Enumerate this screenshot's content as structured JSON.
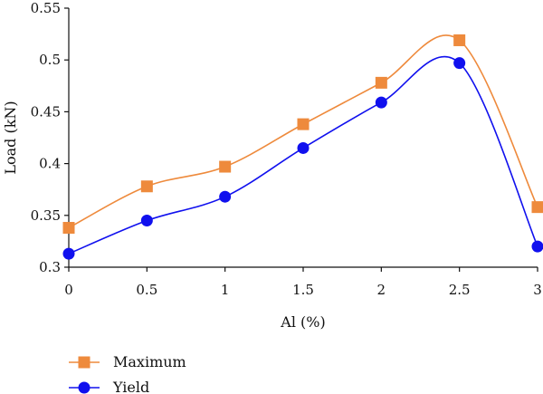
{
  "chart_data": {
    "type": "line",
    "title": "",
    "xlabel": "Al (%)",
    "ylabel": "Load (kN)",
    "xlim": [
      0,
      3
    ],
    "ylim": [
      0.3,
      0.55
    ],
    "x_ticks": [
      0,
      0.5,
      1,
      1.5,
      2,
      2.5,
      3
    ],
    "x_tick_labels": [
      "0",
      "0.5",
      "1",
      "1.5",
      "2",
      "2.5",
      "3"
    ],
    "y_ticks": [
      0.3,
      0.35,
      0.4,
      0.45,
      0.5,
      0.55
    ],
    "y_tick_labels": [
      "0.3",
      "0.35",
      "0.4",
      "0.45",
      "0.5",
      "0.55"
    ],
    "grid": false,
    "legend_position": "bottom-left",
    "series": [
      {
        "name": "Maximum",
        "color": "#ee8a3c",
        "marker": "square",
        "x": [
          0,
          0.5,
          1,
          1.5,
          2,
          2.5,
          3
        ],
        "y": [
          0.338,
          0.378,
          0.397,
          0.438,
          0.478,
          0.519,
          0.358
        ]
      },
      {
        "name": "Yield",
        "color": "#1010ee",
        "marker": "circle",
        "x": [
          0,
          0.5,
          1,
          1.5,
          2,
          2.5,
          3
        ],
        "y": [
          0.313,
          0.345,
          0.368,
          0.415,
          0.459,
          0.497,
          0.32
        ]
      }
    ]
  }
}
